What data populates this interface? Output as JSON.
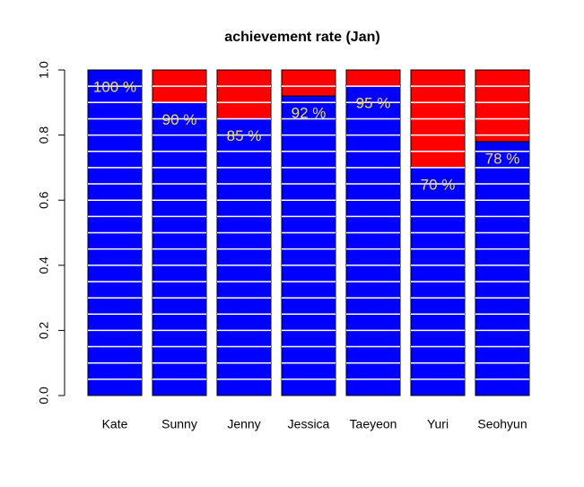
{
  "chart_data": {
    "type": "stacked_bar",
    "title": "achievement rate (Jan)",
    "categories": [
      "Kate",
      "Sunny",
      "Jenny",
      "Jessica",
      "Taeyeon",
      "Yuri",
      "Seohyun"
    ],
    "series": [
      {
        "color": "#0000ff",
        "values": [
          1.0,
          0.9,
          0.85,
          0.92,
          0.95,
          0.7,
          0.78
        ],
        "value_labels": [
          "100 %",
          "90 %",
          "85 %",
          "92 %",
          "95 %",
          "70 %",
          "78 %"
        ]
      },
      {
        "color": "#ff0000",
        "values": [
          0.0,
          0.1,
          0.15,
          0.08,
          0.05,
          0.3,
          0.22
        ]
      }
    ],
    "ylim": [
      0,
      1
    ],
    "yticks": [
      {
        "value": 0,
        "label": "0.0"
      },
      0.2,
      0.4,
      0.6,
      0.8,
      {
        "value": 1,
        "label": "1.0"
      }
    ],
    "value_label_color": "#f0e060"
  }
}
